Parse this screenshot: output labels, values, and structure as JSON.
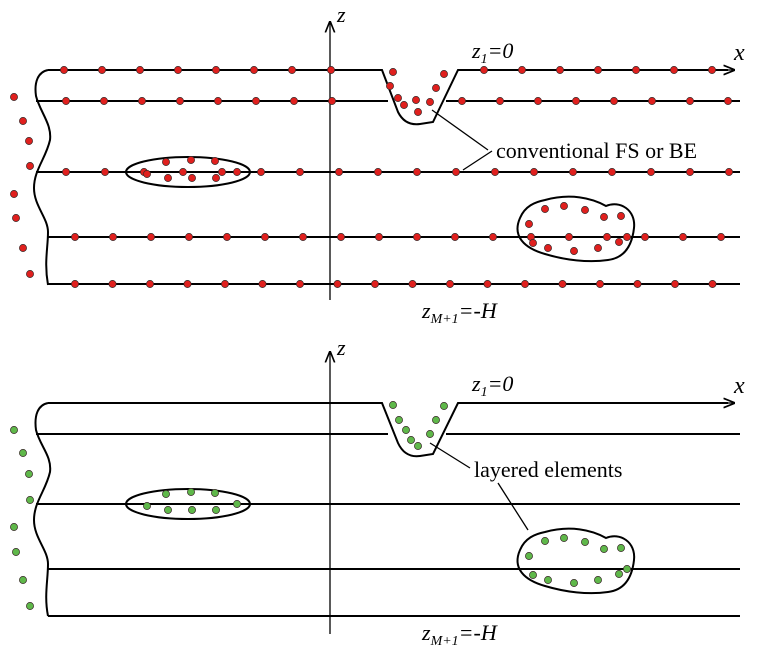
{
  "panels": [
    {
      "axis_x": "x",
      "axis_z": "z",
      "top_label": {
        "var": "z",
        "sub": "1",
        "rest": "=0"
      },
      "bottom_label": {
        "var": "z",
        "sub": "M+1",
        "rest": "=-H"
      },
      "annotation": "conventional FS or BE",
      "dot_color": "#e0201e"
    },
    {
      "axis_x": "x",
      "axis_z": "z",
      "top_label": {
        "var": "z",
        "sub": "1",
        "rest": "=0"
      },
      "bottom_label": {
        "var": "z",
        "sub": "M+1",
        "rest": "=-H"
      },
      "annotation": "layered elements",
      "dot_color": "#5fb84a"
    }
  ]
}
